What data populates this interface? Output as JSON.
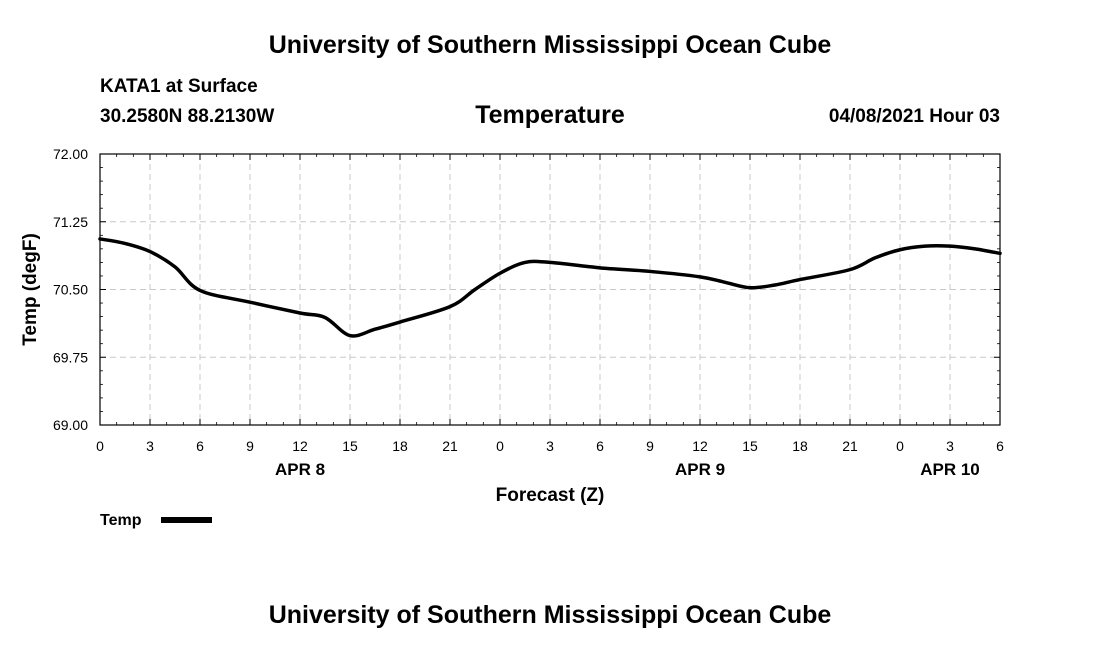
{
  "header": {
    "title": "University of Southern Mississippi Ocean Cube",
    "station": "KATA1 at Surface",
    "coords": "30.2580N  88.2130W",
    "chart_title": "Temperature",
    "datetime": "04/08/2021 Hour 03"
  },
  "footer": {
    "title": "University of Southern Mississippi Ocean Cube"
  },
  "colors": {
    "line": "#000000",
    "grid": "#c8c8c8"
  },
  "chart_data": {
    "type": "line",
    "title": "Temperature",
    "xlabel": "Forecast (Z)",
    "ylabel": "Temp (degF)",
    "ylim": [
      69.0,
      72.0
    ],
    "yticks": [
      "69.00",
      "69.75",
      "70.50",
      "71.25",
      "72.00"
    ],
    "xlim": [
      0,
      54
    ],
    "xtick_labels": [
      "0",
      "3",
      "6",
      "9",
      "12",
      "15",
      "18",
      "21",
      "0",
      "3",
      "6",
      "9",
      "12",
      "15",
      "18",
      "21",
      "0",
      "3",
      "6"
    ],
    "date_labels": [
      {
        "label": "APR 8",
        "hour": 12
      },
      {
        "label": "APR 9",
        "hour": 36
      },
      {
        "label": "APR 10",
        "hour": 51
      }
    ],
    "grid": true,
    "legend": {
      "label": "Temp",
      "position": "bottom-left"
    },
    "series": [
      {
        "name": "Temp",
        "x": [
          0,
          1.5,
          3,
          4.5,
          6,
          9,
          12,
          13.5,
          15,
          16.5,
          18,
          21,
          22.5,
          24,
          25.5,
          27,
          30,
          33,
          36,
          37.5,
          39,
          40.5,
          42,
          45,
          46.5,
          48,
          49.5,
          51,
          52.5,
          54
        ],
        "values": [
          71.06,
          71.01,
          70.92,
          70.75,
          70.49,
          70.36,
          70.24,
          70.19,
          69.99,
          70.06,
          70.14,
          70.31,
          70.5,
          70.68,
          70.8,
          70.8,
          70.74,
          70.7,
          70.64,
          70.58,
          70.52,
          70.55,
          70.61,
          70.72,
          70.85,
          70.94,
          70.98,
          70.98,
          70.95,
          70.9
        ]
      }
    ]
  }
}
